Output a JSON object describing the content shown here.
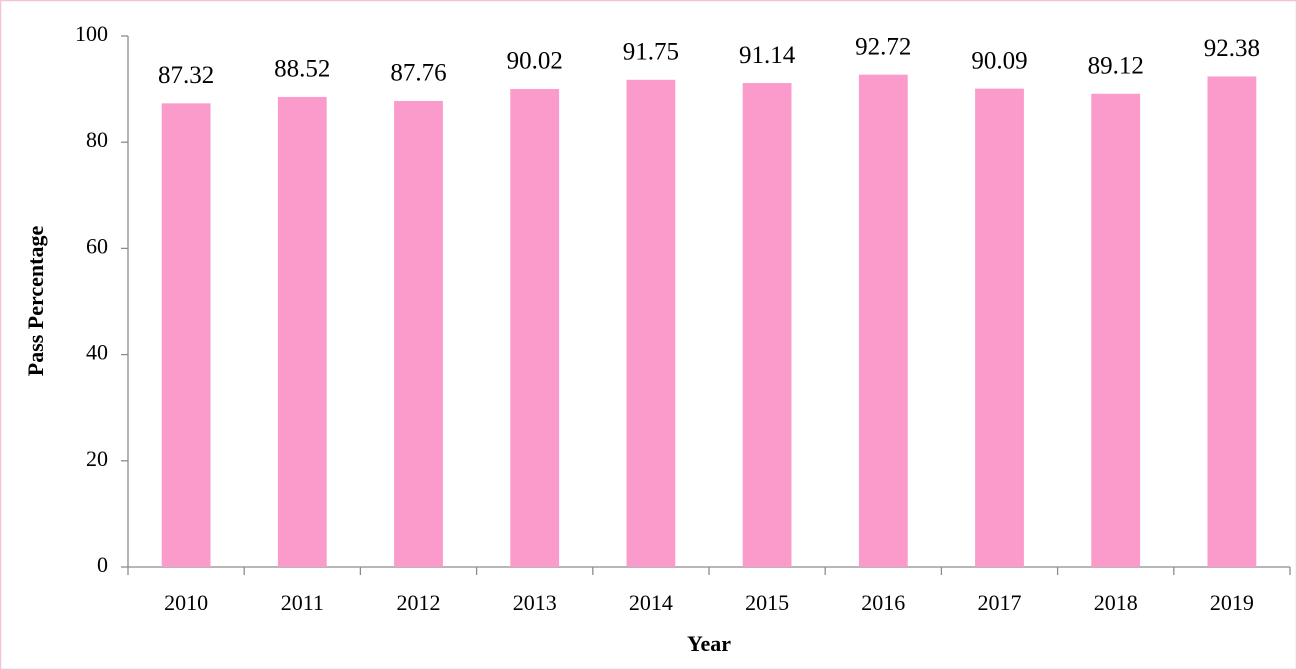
{
  "chart_data": {
    "type": "bar",
    "x_label": "Year",
    "y_label": "Pass Percentage",
    "categories": [
      "2010",
      "2011",
      "2012",
      "2013",
      "2014",
      "2015",
      "2016",
      "2017",
      "2018",
      "2019"
    ],
    "values": [
      87.32,
      88.52,
      87.76,
      90.02,
      91.75,
      91.14,
      92.72,
      90.09,
      89.12,
      92.38
    ],
    "color": "#fa9bcb",
    "ylim": [
      0,
      100
    ],
    "yticks": [
      0,
      20,
      40,
      60,
      80,
      100
    ],
    "grid": false
  }
}
